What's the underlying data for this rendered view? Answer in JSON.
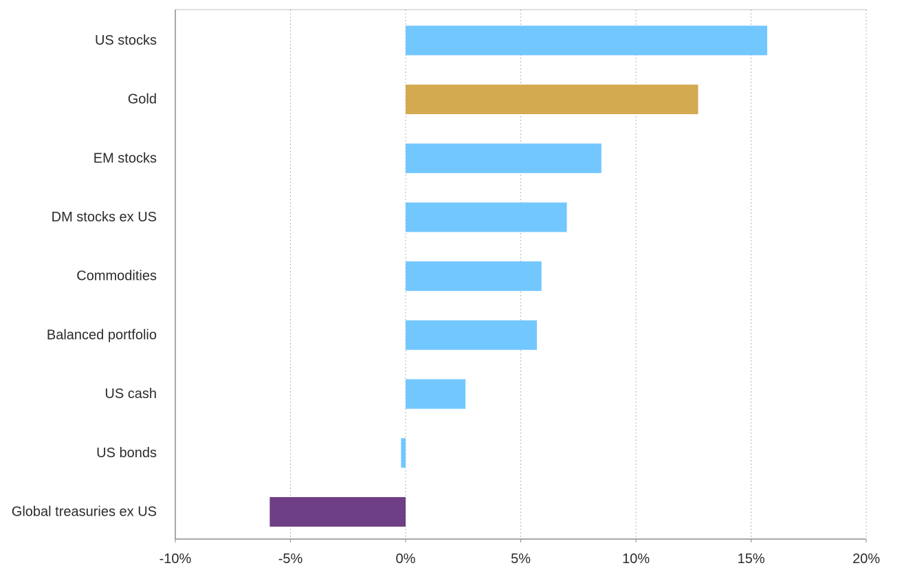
{
  "chart_data": {
    "type": "bar",
    "orientation": "horizontal",
    "categories": [
      "US stocks",
      "Gold",
      "EM stocks",
      "DM stocks ex US",
      "Commodities",
      "Balanced portfolio",
      "US cash",
      "US bonds",
      "Global treasuries ex US"
    ],
    "values": [
      15.7,
      12.7,
      8.5,
      7.0,
      5.9,
      5.7,
      2.6,
      -0.2,
      -5.9
    ],
    "bar_colors": [
      "#73c7ff",
      "#d4aa50",
      "#73c7ff",
      "#73c7ff",
      "#73c7ff",
      "#73c7ff",
      "#73c7ff",
      "#73c7ff",
      "#6e3f84"
    ],
    "xlim": [
      -10,
      20
    ],
    "xticks": [
      -10,
      -5,
      0,
      5,
      10,
      15,
      20
    ],
    "xtick_labels": [
      "-10%",
      "-5%",
      "0%",
      "5%",
      "10%",
      "15%",
      "20%"
    ],
    "grid": "vertical dotted",
    "title": "",
    "xlabel": "",
    "ylabel": ""
  }
}
